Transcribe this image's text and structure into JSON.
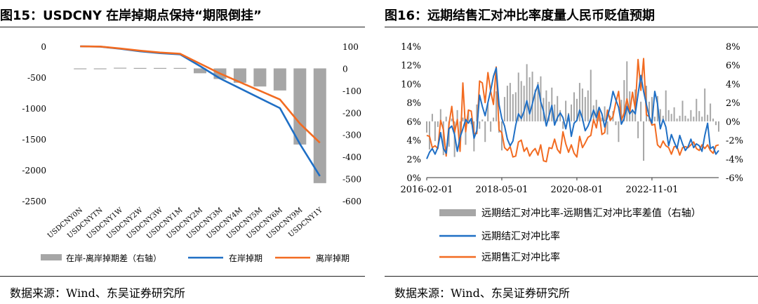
{
  "colors": {
    "bar": "#a6a6a6",
    "blue": "#1f6fc5",
    "orange": "#f26b21",
    "rule": "#222222"
  },
  "left": {
    "title": "图15：USDCNY 在岸掉期点保持“期限倒挂”",
    "source": "数据来源：Wind、东吴证券研究所"
  },
  "right": {
    "title": "图16：远期结售汇对冲比率度量人民币贬值预期",
    "source": "数据来源：Wind、东吴证券研究所"
  },
  "chart_data": [
    {
      "type": "bar+line",
      "title": "USDCNY 在岸掉期点保持“期限倒挂”",
      "categories": [
        "USDCNY0N",
        "USDCNYTN",
        "USDCNY1W",
        "USDCNY2W",
        "USDCNY3W",
        "USDCNY1M",
        "USDCNY2M",
        "USDCNY3M",
        "USDCNY4M",
        "USDCNY5M",
        "USDCNY6M",
        "USDCNY9M",
        "USDCNY1Y"
      ],
      "left_axis": {
        "min": -2500,
        "max": 0,
        "ticks": [
          0,
          -500,
          -1000,
          -1500,
          -2000,
          -2500
        ]
      },
      "right_axis": {
        "min": -600,
        "max": 100,
        "ticks": [
          100,
          0,
          -100,
          -200,
          -300,
          -400,
          -500,
          -600
        ]
      },
      "series": [
        {
          "name": "在岸-离岸掉期差（右轴）",
          "type": "bar",
          "axis": "right",
          "values": [
            0,
            0,
            3,
            2,
            2,
            2,
            -22,
            -48,
            -65,
            -82,
            -100,
            -345,
            -520
          ]
        },
        {
          "name": "在岸掉期",
          "type": "line",
          "axis": "left",
          "values": [
            0,
            -5,
            -40,
            -80,
            -110,
            -130,
            -320,
            -520,
            -680,
            -840,
            -1000,
            -1580,
            -2100
          ]
        },
        {
          "name": "离岸掉期",
          "type": "line",
          "axis": "left",
          "values": [
            0,
            -4,
            -35,
            -70,
            -100,
            -120,
            -280,
            -440,
            -580,
            -720,
            -860,
            -1250,
            -1560
          ]
        }
      ]
    },
    {
      "type": "bar+line",
      "title": "远期结售汇对冲比率度量人民币贬值预期",
      "x_ticks": [
        "2016-02-01",
        "2018-05-01",
        "2020-08-01",
        "2022-11-01"
      ],
      "x_range": [
        "2016-02",
        "2024-06"
      ],
      "left_axis": {
        "min": 0,
        "max": 14,
        "ticks": [
          "0%",
          "2%",
          "4%",
          "6%",
          "8%",
          "10%",
          "12%",
          "14%"
        ]
      },
      "right_axis": {
        "min": -6,
        "max": 8,
        "ticks": [
          "8%",
          "6%",
          "4%",
          "2%",
          "0%",
          "-2%",
          "-4%",
          "-6%"
        ]
      },
      "series": [
        {
          "name": "远期结汇对冲比率-远期售汇对冲比率差值（右轴）",
          "type": "bar",
          "axis": "right",
          "values": [
            -1.2,
            -3,
            0.8,
            -2.1,
            -0.6,
            1.3,
            -3.6,
            0.5,
            -2.7,
            0.3,
            -3.8,
            1.2,
            -1.6,
            0.4,
            -2.5,
            1.1,
            -0.3,
            -3.2,
            1.8,
            -0.8,
            0.2,
            -2.2,
            1.9,
            -1.1,
            0.4,
            3.2,
            -1.2,
            -3.1,
            2.6,
            3.8,
            4.1,
            2.9,
            3.1,
            5.2,
            4.3,
            3.8,
            6.1,
            4.7,
            5.3,
            3.4,
            4.2,
            4.8,
            2.5,
            3.3,
            2.1,
            3.6,
            1.8,
            2.7,
            1.2,
            -0.8,
            2.2,
            0.9,
            1.8,
            3.1,
            2.4,
            4.1,
            3.5,
            2.6,
            3.3,
            5.5,
            1.7,
            2.3,
            1.3,
            0.4,
            1.6,
            -1.4,
            0.6,
            1.1,
            -0.4,
            -2.2,
            2.3,
            4.4,
            6.4,
            3.2,
            1.3,
            3.4,
            -1.8,
            2.1,
            -4.2,
            3.8,
            2.1,
            2.6,
            0.5,
            2.7,
            1.3,
            0.6,
            3.3,
            1.2,
            0.8,
            1.5,
            0.3,
            0.6,
            2.2,
            0.6,
            0.3,
            1.2,
            0.5,
            2.4,
            1.1,
            0.5,
            3.5,
            0.7,
            1.9,
            0.3,
            -0.4,
            -1.1
          ]
        },
        {
          "name": "远期结汇对冲比率",
          "type": "line",
          "axis": "left",
          "values": [
            2,
            2.7,
            3.1,
            2.5,
            3.2,
            4.8,
            3.1,
            2.6,
            5.2,
            5.5,
            4.6,
            2.8,
            4.3,
            5.2,
            6.2,
            5.8,
            6.3,
            4.2,
            5,
            8.8,
            7.6,
            6.6,
            8,
            9.3,
            10.8,
            11.7,
            7.8,
            6.3,
            5.5,
            4.1,
            3.4,
            3.9,
            5.6,
            6.8,
            6.3,
            7.1,
            8.2,
            6.8,
            7.9,
            9.1,
            9.9,
            8.1,
            7.1,
            5.5,
            6.6,
            7.7,
            5.6,
            6.4,
            6.9,
            6.4,
            5.2,
            6.7,
            4.4,
            5.8,
            6.1,
            7.2,
            6.3,
            5,
            5.5,
            6.3,
            7.2,
            6.4,
            7.5,
            6.8,
            5.4,
            6.5,
            7.6,
            9.2,
            8.3,
            7.5,
            5.7,
            6.3,
            7.6,
            6.8,
            7.2,
            6.8,
            8.9,
            10.9,
            9.2,
            7.8,
            6.5,
            5.8,
            9.2,
            7.9,
            5.2,
            6.2,
            5.4,
            3.4,
            4.6,
            3.8,
            3.1,
            4.5,
            3.6,
            2.9,
            3.3,
            4.1,
            3.2,
            3.6,
            3.4,
            2.8,
            4.5,
            5.8,
            3.1,
            3.3,
            2.5,
            2.9
          ]
        },
        {
          "name": "远期售汇对冲比率",
          "type": "line",
          "axis": "left",
          "values": [
            4.5,
            4.4,
            3.2,
            3.4,
            3.1,
            6.1,
            5.1,
            2.3,
            5.7,
            7.6,
            4.8,
            6.2,
            2.8,
            10.1,
            4.9,
            7.2,
            7.1,
            4.7,
            4.7,
            10.3,
            10.1,
            8,
            11.2,
            9.2,
            7.8,
            11.8,
            5.1,
            4.8,
            3.2,
            2.9,
            3.3,
            2.2,
            2.3,
            3.8,
            4,
            2.8,
            3.2,
            2.3,
            2.8,
            3.1,
            2.4,
            3.5,
            1.8,
            1.7,
            3.2,
            3.1,
            4.1,
            3,
            2.6,
            4.9,
            3.6,
            2.7,
            3.5,
            2.6,
            2.2,
            4.4,
            3.2,
            3.7,
            4.3,
            4.5,
            6.2,
            5.3,
            7.1,
            4.6,
            4.8,
            7.2,
            6.1,
            6.5,
            8,
            9.2,
            6.1,
            6.9,
            8.4,
            6.9,
            9.1,
            7.3,
            12.6,
            9.3,
            12.7,
            6.7,
            6.5,
            5.6,
            5.7,
            3.5,
            3.2,
            3.9,
            3.4,
            3.2,
            2.5,
            3.3,
            3.3,
            2.4,
            3.2,
            3.3,
            3.2,
            3.5,
            3.8,
            3.1,
            2.9,
            3.5,
            3.1,
            3.5,
            2.9,
            2.6,
            3.4,
            3.5
          ]
        }
      ]
    }
  ]
}
